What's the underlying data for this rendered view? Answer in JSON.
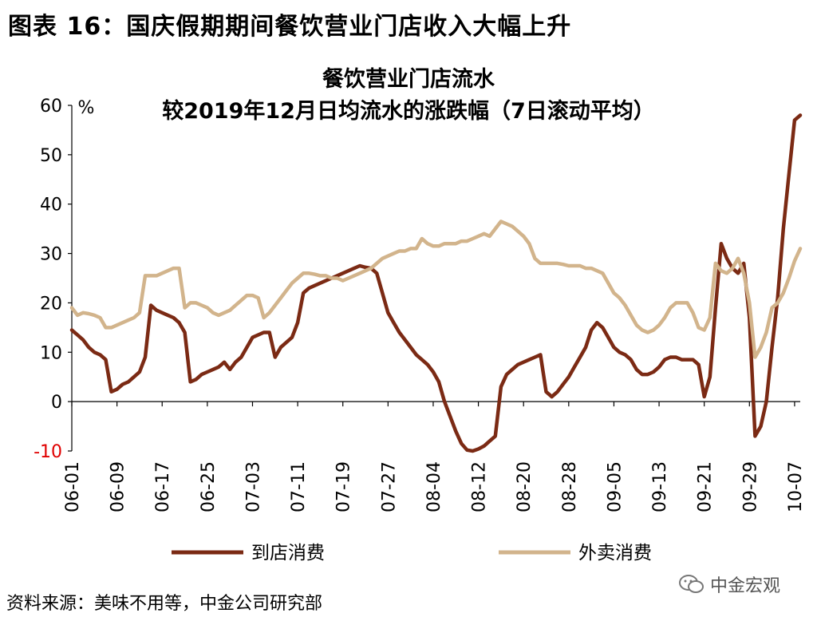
{
  "figure_title": "图表 16：国庆假期期间餐饮营业门店收入大幅上升",
  "source_text": "资料来源：美味不用等，中金公司研究部",
  "watermark_text": "中金宏观",
  "colors": {
    "store": "#7b2a14",
    "delivery": "#d2b48c",
    "axis": "#000000",
    "negative_tick": "#e00000"
  },
  "chart_data": {
    "type": "line",
    "title": [
      "餐饮营业门店流水",
      "较2019年12月日均流水的涨跌幅（7日滚动平均）"
    ],
    "ylabel": "%",
    "xlabel": "",
    "ylim": [
      -10,
      60
    ],
    "yticks": [
      -10,
      0,
      10,
      20,
      30,
      40,
      50,
      60
    ],
    "xlim": [
      "06-01",
      "10-08"
    ],
    "xticks": [
      "06-01",
      "06-09",
      "06-17",
      "06-25",
      "07-03",
      "07-11",
      "07-19",
      "07-27",
      "08-04",
      "08-12",
      "08-20",
      "08-28",
      "09-05",
      "09-13",
      "09-21",
      "09-29",
      "10-07"
    ],
    "grid": false,
    "legend": "bottom",
    "series": [
      {
        "name": "到店消费",
        "color": "#7b2a14",
        "points": [
          [
            "06-01",
            14.5
          ],
          [
            "06-02",
            13.5
          ],
          [
            "06-03",
            12.5
          ],
          [
            "06-04",
            11
          ],
          [
            "06-05",
            10
          ],
          [
            "06-06",
            9.5
          ],
          [
            "06-07",
            8.5
          ],
          [
            "06-08",
            2
          ],
          [
            "06-09",
            2.5
          ],
          [
            "06-10",
            3.5
          ],
          [
            "06-11",
            4
          ],
          [
            "06-12",
            5
          ],
          [
            "06-13",
            6
          ],
          [
            "06-14",
            9
          ],
          [
            "06-15",
            19.5
          ],
          [
            "06-16",
            18.5
          ],
          [
            "06-17",
            18
          ],
          [
            "06-18",
            17.5
          ],
          [
            "06-19",
            17
          ],
          [
            "06-20",
            16
          ],
          [
            "06-21",
            14
          ],
          [
            "06-22",
            4
          ],
          [
            "06-23",
            4.5
          ],
          [
            "06-24",
            5.5
          ],
          [
            "06-25",
            6
          ],
          [
            "06-26",
            6.5
          ],
          [
            "06-27",
            7
          ],
          [
            "06-28",
            8
          ],
          [
            "06-29",
            6.5
          ],
          [
            "06-30",
            8
          ],
          [
            "07-01",
            9
          ],
          [
            "07-02",
            11
          ],
          [
            "07-03",
            13
          ],
          [
            "07-04",
            13.5
          ],
          [
            "07-05",
            14
          ],
          [
            "07-06",
            14
          ],
          [
            "07-07",
            9
          ],
          [
            "07-08",
            11
          ],
          [
            "07-09",
            12
          ],
          [
            "07-10",
            13
          ],
          [
            "07-11",
            16
          ],
          [
            "07-12",
            22
          ],
          [
            "07-13",
            23
          ],
          [
            "07-14",
            23.5
          ],
          [
            "07-15",
            24
          ],
          [
            "07-16",
            24.5
          ],
          [
            "07-17",
            25
          ],
          [
            "07-18",
            25.5
          ],
          [
            "07-19",
            26
          ],
          [
            "07-20",
            26.5
          ],
          [
            "07-21",
            27
          ],
          [
            "07-22",
            27.5
          ],
          [
            "07-23",
            27.2
          ],
          [
            "07-24",
            27
          ],
          [
            "07-25",
            26
          ],
          [
            "07-26",
            22
          ],
          [
            "07-27",
            18
          ],
          [
            "07-28",
            16
          ],
          [
            "07-29",
            14
          ],
          [
            "07-30",
            12.5
          ],
          [
            "07-31",
            11
          ],
          [
            "08-01",
            9.5
          ],
          [
            "08-02",
            8.5
          ],
          [
            "08-03",
            7.5
          ],
          [
            "08-04",
            6
          ],
          [
            "08-05",
            4
          ],
          [
            "08-06",
            0
          ],
          [
            "08-07",
            -3
          ],
          [
            "08-08",
            -6
          ],
          [
            "08-09",
            -8.5
          ],
          [
            "08-10",
            -9.8
          ],
          [
            "08-11",
            -10
          ],
          [
            "08-12",
            -9.6
          ],
          [
            "08-13",
            -9
          ],
          [
            "08-14",
            -8
          ],
          [
            "08-15",
            -7
          ],
          [
            "08-16",
            3
          ],
          [
            "08-17",
            5.5
          ],
          [
            "08-18",
            6.5
          ],
          [
            "08-19",
            7.5
          ],
          [
            "08-20",
            8
          ],
          [
            "08-21",
            8.5
          ],
          [
            "08-22",
            9
          ],
          [
            "08-23",
            9.5
          ],
          [
            "08-24",
            2
          ],
          [
            "08-25",
            1
          ],
          [
            "08-26",
            2
          ],
          [
            "08-27",
            3.5
          ],
          [
            "08-28",
            5
          ],
          [
            "08-29",
            7
          ],
          [
            "08-30",
            9
          ],
          [
            "08-31",
            11
          ],
          [
            "09-01",
            14.5
          ],
          [
            "09-02",
            16
          ],
          [
            "09-03",
            15
          ],
          [
            "09-04",
            13
          ],
          [
            "09-05",
            11
          ],
          [
            "09-06",
            10
          ],
          [
            "09-07",
            9.5
          ],
          [
            "09-08",
            8.5
          ],
          [
            "09-09",
            6.5
          ],
          [
            "09-10",
            5.5
          ],
          [
            "09-11",
            5.5
          ],
          [
            "09-12",
            6
          ],
          [
            "09-13",
            7
          ],
          [
            "09-14",
            8.5
          ],
          [
            "09-15",
            9
          ],
          [
            "09-16",
            9
          ],
          [
            "09-17",
            8.5
          ],
          [
            "09-18",
            8.5
          ],
          [
            "09-19",
            8.5
          ],
          [
            "09-20",
            7.5
          ],
          [
            "09-21",
            1
          ],
          [
            "09-22",
            5
          ],
          [
            "09-23",
            19
          ],
          [
            "09-24",
            32
          ],
          [
            "09-25",
            29
          ],
          [
            "09-26",
            27
          ],
          [
            "09-27",
            26
          ],
          [
            "09-28",
            28
          ],
          [
            "09-29",
            17
          ],
          [
            "09-30",
            -7
          ],
          [
            "10-01",
            -5
          ],
          [
            "10-02",
            0
          ],
          [
            "10-03",
            11
          ],
          [
            "10-04",
            21
          ],
          [
            "10-05",
            35
          ],
          [
            "10-06",
            46
          ],
          [
            "10-07",
            57
          ],
          [
            "10-08",
            58
          ]
        ]
      },
      {
        "name": "外卖消费",
        "color": "#d2b48c",
        "points": [
          [
            "06-01",
            19
          ],
          [
            "06-02",
            17.5
          ],
          [
            "06-03",
            18
          ],
          [
            "06-04",
            17.8
          ],
          [
            "06-05",
            17.5
          ],
          [
            "06-06",
            17
          ],
          [
            "06-07",
            15
          ],
          [
            "06-08",
            15
          ],
          [
            "06-09",
            15.5
          ],
          [
            "06-10",
            16
          ],
          [
            "06-11",
            16.5
          ],
          [
            "06-12",
            17
          ],
          [
            "06-13",
            18
          ],
          [
            "06-14",
            25.5
          ],
          [
            "06-15",
            25.5
          ],
          [
            "06-16",
            25.5
          ],
          [
            "06-17",
            26
          ],
          [
            "06-18",
            26.5
          ],
          [
            "06-19",
            27
          ],
          [
            "06-20",
            27
          ],
          [
            "06-21",
            19
          ],
          [
            "06-22",
            20
          ],
          [
            "06-23",
            20
          ],
          [
            "06-24",
            19.5
          ],
          [
            "06-25",
            19
          ],
          [
            "06-26",
            18
          ],
          [
            "06-27",
            17.5
          ],
          [
            "06-28",
            18
          ],
          [
            "06-29",
            18.5
          ],
          [
            "06-30",
            19.5
          ],
          [
            "07-01",
            20.5
          ],
          [
            "07-02",
            21.5
          ],
          [
            "07-03",
            21.5
          ],
          [
            "07-04",
            21
          ],
          [
            "07-05",
            17
          ],
          [
            "07-06",
            18
          ],
          [
            "07-07",
            19.5
          ],
          [
            "07-08",
            21
          ],
          [
            "07-09",
            22.5
          ],
          [
            "07-10",
            24
          ],
          [
            "07-11",
            25
          ],
          [
            "07-12",
            26
          ],
          [
            "07-13",
            26
          ],
          [
            "07-14",
            25.8
          ],
          [
            "07-15",
            25.5
          ],
          [
            "07-16",
            25.5
          ],
          [
            "07-17",
            25
          ],
          [
            "07-18",
            25
          ],
          [
            "07-19",
            24.5
          ],
          [
            "07-20",
            25
          ],
          [
            "07-21",
            25.5
          ],
          [
            "07-22",
            26
          ],
          [
            "07-23",
            26.5
          ],
          [
            "07-24",
            27
          ],
          [
            "07-25",
            28
          ],
          [
            "07-26",
            29
          ],
          [
            "07-27",
            29.5
          ],
          [
            "07-28",
            30
          ],
          [
            "07-29",
            30.5
          ],
          [
            "07-30",
            30.5
          ],
          [
            "07-31",
            31
          ],
          [
            "08-01",
            31
          ],
          [
            "08-02",
            33
          ],
          [
            "08-03",
            32
          ],
          [
            "08-04",
            31.5
          ],
          [
            "08-05",
            31.5
          ],
          [
            "08-06",
            32
          ],
          [
            "08-07",
            32
          ],
          [
            "08-08",
            32
          ],
          [
            "08-09",
            32.5
          ],
          [
            "08-10",
            32.5
          ],
          [
            "08-11",
            33
          ],
          [
            "08-12",
            33.5
          ],
          [
            "08-13",
            34
          ],
          [
            "08-14",
            33.5
          ],
          [
            "08-15",
            35
          ],
          [
            "08-16",
            36.5
          ],
          [
            "08-17",
            36
          ],
          [
            "08-18",
            35.5
          ],
          [
            "08-19",
            34.5
          ],
          [
            "08-20",
            33.5
          ],
          [
            "08-21",
            32
          ],
          [
            "08-22",
            29
          ],
          [
            "08-23",
            28
          ],
          [
            "08-24",
            28
          ],
          [
            "08-25",
            28
          ],
          [
            "08-26",
            28
          ],
          [
            "08-27",
            27.8
          ],
          [
            "08-28",
            27.5
          ],
          [
            "08-29",
            27.5
          ],
          [
            "08-30",
            27.5
          ],
          [
            "08-31",
            27
          ],
          [
            "09-01",
            27
          ],
          [
            "09-02",
            26.5
          ],
          [
            "09-03",
            26
          ],
          [
            "09-04",
            24
          ],
          [
            "09-05",
            22
          ],
          [
            "09-06",
            21
          ],
          [
            "09-07",
            19.5
          ],
          [
            "09-08",
            17.5
          ],
          [
            "09-09",
            15.5
          ],
          [
            "09-10",
            14.5
          ],
          [
            "09-11",
            14
          ],
          [
            "09-12",
            14.5
          ],
          [
            "09-13",
            15.5
          ],
          [
            "09-14",
            17
          ],
          [
            "09-15",
            19
          ],
          [
            "09-16",
            20
          ],
          [
            "09-17",
            20
          ],
          [
            "09-18",
            20
          ],
          [
            "09-19",
            18
          ],
          [
            "09-20",
            15
          ],
          [
            "09-21",
            14.5
          ],
          [
            "09-22",
            17
          ],
          [
            "09-23",
            28
          ],
          [
            "09-24",
            26.5
          ],
          [
            "09-25",
            26
          ],
          [
            "09-26",
            27
          ],
          [
            "09-27",
            29
          ],
          [
            "09-28",
            26
          ],
          [
            "09-29",
            20
          ],
          [
            "09-30",
            9
          ],
          [
            "10-01",
            11
          ],
          [
            "10-02",
            14
          ],
          [
            "10-03",
            19
          ],
          [
            "10-04",
            20
          ],
          [
            "10-05",
            22
          ],
          [
            "10-06",
            25
          ],
          [
            "10-07",
            28.5
          ],
          [
            "10-08",
            31
          ]
        ]
      }
    ]
  }
}
